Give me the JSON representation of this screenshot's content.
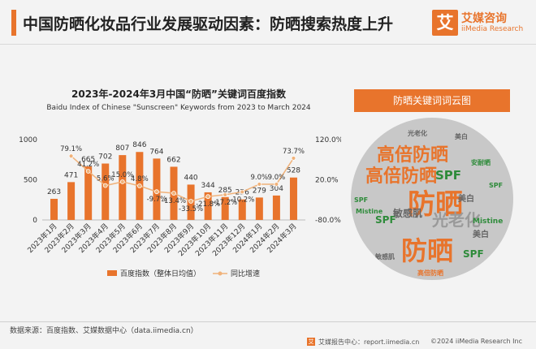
{
  "header": {
    "title": "中国防晒化妆品行业发展驱动因素：防晒搜索热度上升",
    "logo_mark": "艾",
    "logo_cn": "艾媒咨询",
    "logo_en": "iiMedia Research"
  },
  "colors": {
    "accent": "#e8742c",
    "bar": "#e8742c",
    "line": "#f0b27a"
  },
  "chart_data": {
    "type": "bar",
    "title": "2023年-2024年3月中国“防晒”关键词百度指数",
    "subtitle": "Baidu Index of Chinese \"Sunscreen\" Keywords from 2023 to March 2024",
    "categories": [
      "2023年1月",
      "2023年2月",
      "2023年3月",
      "2023年4月",
      "2023年5月",
      "2023年6月",
      "2023年7月",
      "2023年8月",
      "2023年9月",
      "2023年10月",
      "2023年11月",
      "2023年12月",
      "2024年1月",
      "2024年2月",
      "2024年3月"
    ],
    "series": [
      {
        "name": "百度指数（整体日均值）",
        "type": "bar",
        "axis": "left",
        "values": [
          263,
          471,
          665,
          702,
          807,
          846,
          764,
          662,
          440,
          344,
          285,
          256,
          279,
          304,
          528
        ],
        "labels": [
          "263",
          "471",
          "665",
          "702",
          "807",
          "846",
          "764",
          "662",
          "440",
          "344",
          "285",
          "256",
          "279",
          "304",
          "528"
        ]
      },
      {
        "name": "同比增速",
        "type": "line",
        "axis": "right",
        "values": [
          null,
          79.1,
          41.2,
          5.6,
          15.0,
          4.8,
          -9.7,
          -13.4,
          -33.5,
          -21.8,
          -17.2,
          -10.2,
          9.0,
          9.0,
          73.7
        ],
        "labels": [
          "",
          "79.1%",
          "41.2%",
          "5.6%",
          "15.0%",
          "4.8%",
          "-9.7%",
          "-13.4%",
          "-33.5%",
          "-21.8%",
          "-17.2%",
          "-10.2%",
          "9.0%",
          "9.0%",
          "73.7%"
        ]
      }
    ],
    "y_left": {
      "ylim": [
        0,
        1000
      ],
      "ticks": [
        "0",
        "500",
        "1000"
      ]
    },
    "y_right": {
      "ylim": [
        -80,
        120
      ],
      "ticks": [
        "-80.0%",
        "20.0%",
        "120.0%"
      ]
    },
    "legend_position": "bottom",
    "grid": false
  },
  "wordcloud": {
    "header": "防晒关键词词云图",
    "words": [
      {
        "text": "防晒",
        "size": 34,
        "color": "#e8742c"
      },
      {
        "text": "防晒",
        "size": 32,
        "color": "#e8742c"
      },
      {
        "text": "高倍防晒",
        "size": 22,
        "color": "#e8742c"
      },
      {
        "text": "高倍防晒",
        "size": 22,
        "color": "#e8742c"
      },
      {
        "text": "光老化",
        "size": 20,
        "color": "#9a9a9a"
      },
      {
        "text": "SPF",
        "size": 15,
        "color": "#2e8b3a"
      },
      {
        "text": "SPF",
        "size": 12,
        "color": "#2e8b3a"
      },
      {
        "text": "SPF",
        "size": 12,
        "color": "#2e8b3a"
      },
      {
        "text": "敏感肌",
        "size": 12,
        "color": "#666"
      },
      {
        "text": "美白",
        "size": 10,
        "color": "#666"
      },
      {
        "text": "美白",
        "size": 10,
        "color": "#666"
      },
      {
        "text": "Mistine",
        "size": 9,
        "color": "#2e8b3a"
      },
      {
        "text": "Mistine",
        "size": 8,
        "color": "#2e8b3a"
      },
      {
        "text": "安耐晒",
        "size": 8,
        "color": "#2e8b3a"
      },
      {
        "text": "高倍防晒",
        "size": 8,
        "color": "#e8742c"
      },
      {
        "text": "敏感肌",
        "size": 8,
        "color": "#666"
      },
      {
        "text": "光老化",
        "size": 8,
        "color": "#666"
      },
      {
        "text": "美白",
        "size": 8,
        "color": "#666"
      },
      {
        "text": "SPF",
        "size": 8,
        "color": "#2e8b3a"
      },
      {
        "text": "SPF",
        "size": 8,
        "color": "#2e8b3a"
      }
    ]
  },
  "footer": {
    "source": "数据来源：百度指数、艾媒数据中心（data.iimedia.cn）",
    "logo_mark": "艾",
    "report": "艾媒报告中心：report.iimedia.cn",
    "copyright": "©2024 iiMedia Research Inc"
  }
}
